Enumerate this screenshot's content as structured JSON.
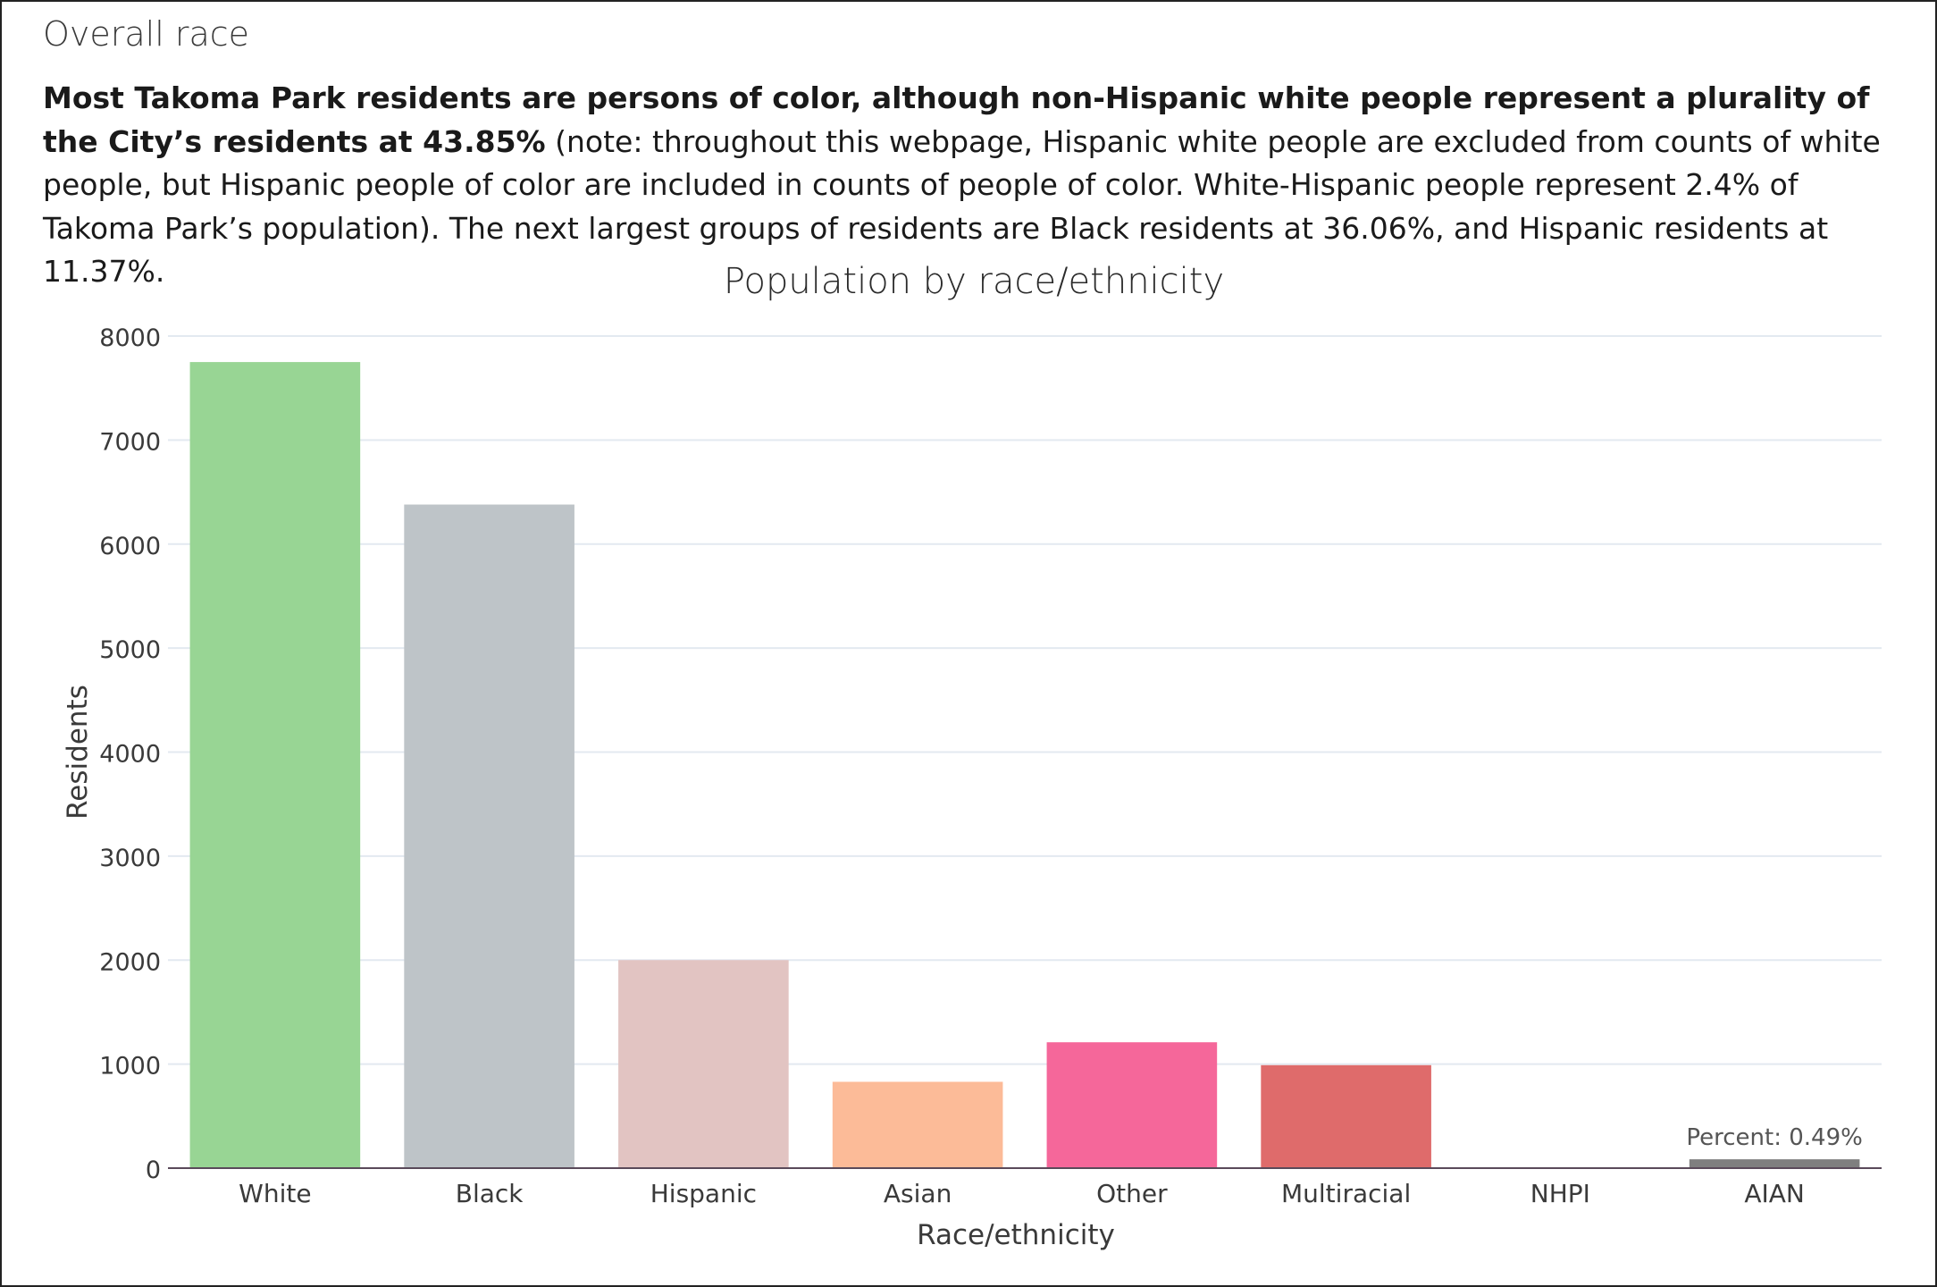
{
  "section": {
    "heading": "Overall race",
    "intro_bold": "Most Takoma Park residents are persons of color, although non-Hispanic white people represent a plurality of the City’s residents at 43.85%",
    "intro_rest": " (note: throughout this webpage, Hispanic white people are excluded from counts of white people, but Hispanic people of color are included in counts of people of color. White-Hispanic people represent 2.4% of Takoma Park’s population). The next largest groups of residents are Black residents at 36.06%, and Hispanic residents at 11.37%."
  },
  "chart_data": {
    "type": "bar",
    "title": "Population by race/ethnicity",
    "xlabel": "Race/ethnicity",
    "ylabel": "Residents",
    "categories": [
      "White",
      "Black",
      "Hispanic",
      "Asian",
      "Other",
      "Multiracial",
      "NHPI",
      "AIAN"
    ],
    "values": [
      7750,
      6380,
      2000,
      830,
      1210,
      990,
      5,
      85
    ],
    "colors": [
      "#98d594",
      "#bec4c8",
      "#e2c4c2",
      "#fcbb98",
      "#f5679a",
      "#df6b6b",
      "#7f7f7f",
      "#7f7f7f"
    ],
    "ylim": [
      0,
      8000
    ],
    "yticks": [
      0,
      1000,
      2000,
      3000,
      4000,
      5000,
      6000,
      7000,
      8000
    ],
    "grid": true,
    "annotations": [
      {
        "category": "AIAN",
        "text": "Percent: 0.49%"
      }
    ]
  }
}
